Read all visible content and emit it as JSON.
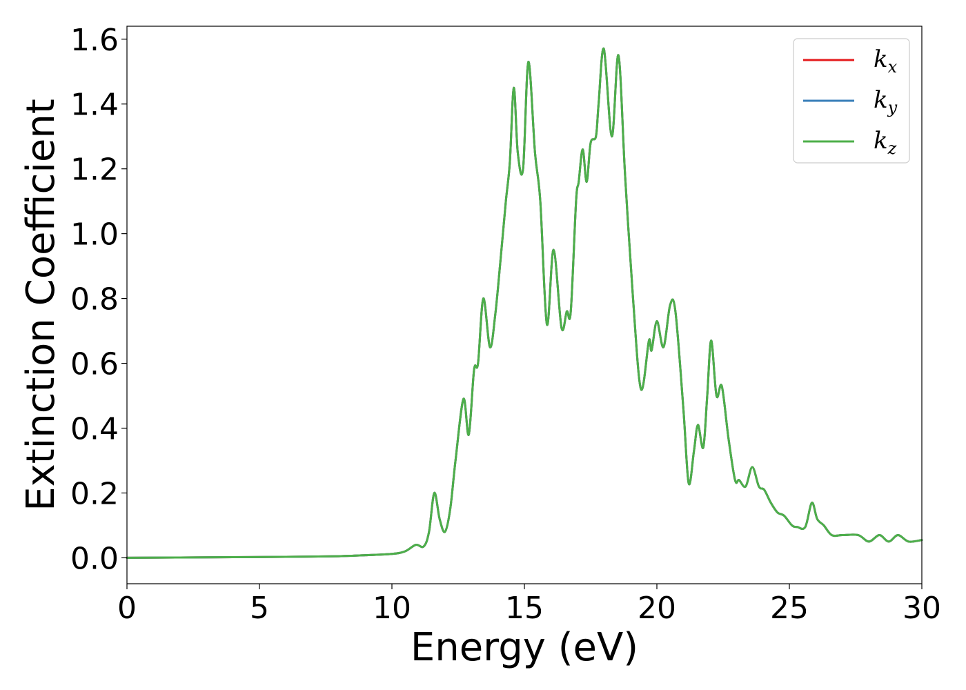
{
  "chart_data": {
    "type": "line",
    "xlabel": "Energy (eV)",
    "ylabel": "Extinction Coefficient",
    "xlim": [
      0,
      30
    ],
    "ylim": [
      -0.08,
      1.64
    ],
    "xticks": [
      0,
      5,
      10,
      15,
      20,
      25,
      30
    ],
    "xtick_labels": [
      "0",
      "5",
      "10",
      "15",
      "20",
      "25",
      "30"
    ],
    "yticks": [
      0.0,
      0.2,
      0.4,
      0.6,
      0.8,
      1.0,
      1.2,
      1.4,
      1.6
    ],
    "ytick_labels": [
      "0.0",
      "0.2",
      "0.4",
      "0.6",
      "0.8",
      "1.0",
      "1.2",
      "1.4",
      "1.6"
    ],
    "grid": false,
    "legend_position": "top-right",
    "legend": [
      {
        "base": "k",
        "sub": "x",
        "color": "#e41a1c"
      },
      {
        "base": "k",
        "sub": "y",
        "color": "#377eb8"
      },
      {
        "base": "k",
        "sub": "z",
        "color": "#4daf4a"
      }
    ],
    "shared_x": [
      0,
      2,
      4,
      6,
      8,
      9,
      10,
      10.5,
      10.9,
      11.2,
      11.4,
      11.6,
      11.8,
      12.0,
      12.2,
      12.4,
      12.7,
      12.9,
      13.1,
      13.25,
      13.45,
      13.7,
      13.9,
      14.1,
      14.3,
      14.45,
      14.6,
      14.75,
      14.95,
      15.15,
      15.4,
      15.6,
      15.85,
      16.1,
      16.4,
      16.6,
      16.75,
      16.95,
      17.05,
      17.2,
      17.35,
      17.5,
      17.7,
      17.8,
      18.0,
      18.3,
      18.55,
      18.8,
      19.1,
      19.4,
      19.7,
      19.8,
      20.0,
      20.25,
      20.5,
      20.7,
      21.0,
      21.2,
      21.4,
      21.55,
      21.75,
      21.9,
      22.05,
      22.25,
      22.45,
      22.7,
      22.95,
      23.1,
      23.35,
      23.6,
      23.85,
      24.05,
      24.3,
      24.55,
      24.8,
      25.1,
      25.3,
      25.6,
      25.85,
      26.05,
      26.3,
      26.6,
      27.0,
      27.6,
      28.0,
      28.4,
      28.75,
      29.1,
      29.5,
      30.0
    ],
    "series": [
      {
        "name": "k_x",
        "color": "#e41a1c",
        "values": [
          0,
          0.001,
          0.002,
          0.003,
          0.005,
          0.008,
          0.012,
          0.02,
          0.04,
          0.035,
          0.08,
          0.2,
          0.12,
          0.08,
          0.15,
          0.3,
          0.49,
          0.38,
          0.58,
          0.6,
          0.8,
          0.65,
          0.75,
          0.92,
          1.1,
          1.22,
          1.45,
          1.25,
          1.2,
          1.53,
          1.25,
          1.1,
          0.72,
          0.95,
          0.71,
          0.76,
          0.76,
          1.1,
          1.16,
          1.26,
          1.16,
          1.28,
          1.3,
          1.4,
          1.57,
          1.3,
          1.55,
          1.18,
          0.8,
          0.52,
          0.67,
          0.64,
          0.73,
          0.65,
          0.78,
          0.76,
          0.46,
          0.23,
          0.33,
          0.41,
          0.34,
          0.5,
          0.67,
          0.5,
          0.53,
          0.37,
          0.24,
          0.24,
          0.22,
          0.28,
          0.22,
          0.21,
          0.17,
          0.14,
          0.13,
          0.1,
          0.095,
          0.095,
          0.17,
          0.12,
          0.1,
          0.07,
          0.07,
          0.07,
          0.05,
          0.07,
          0.05,
          0.07,
          0.05,
          0.055
        ]
      },
      {
        "name": "k_y",
        "color": "#377eb8",
        "values": [
          0,
          0.001,
          0.002,
          0.003,
          0.005,
          0.008,
          0.012,
          0.02,
          0.04,
          0.035,
          0.08,
          0.2,
          0.12,
          0.08,
          0.15,
          0.3,
          0.49,
          0.38,
          0.58,
          0.6,
          0.8,
          0.65,
          0.75,
          0.92,
          1.1,
          1.22,
          1.45,
          1.25,
          1.2,
          1.53,
          1.25,
          1.1,
          0.72,
          0.95,
          0.71,
          0.76,
          0.76,
          1.1,
          1.16,
          1.26,
          1.16,
          1.28,
          1.3,
          1.4,
          1.57,
          1.3,
          1.55,
          1.18,
          0.8,
          0.52,
          0.67,
          0.64,
          0.73,
          0.65,
          0.78,
          0.76,
          0.46,
          0.23,
          0.33,
          0.41,
          0.34,
          0.5,
          0.67,
          0.5,
          0.53,
          0.37,
          0.24,
          0.24,
          0.22,
          0.28,
          0.22,
          0.21,
          0.17,
          0.14,
          0.13,
          0.1,
          0.095,
          0.095,
          0.17,
          0.12,
          0.1,
          0.07,
          0.07,
          0.07,
          0.05,
          0.07,
          0.05,
          0.07,
          0.05,
          0.055
        ]
      },
      {
        "name": "k_z",
        "color": "#4daf4a",
        "values": [
          0,
          0.001,
          0.002,
          0.003,
          0.005,
          0.008,
          0.012,
          0.02,
          0.04,
          0.035,
          0.08,
          0.2,
          0.12,
          0.08,
          0.15,
          0.3,
          0.49,
          0.38,
          0.58,
          0.6,
          0.8,
          0.65,
          0.75,
          0.92,
          1.1,
          1.22,
          1.45,
          1.25,
          1.2,
          1.53,
          1.25,
          1.1,
          0.72,
          0.95,
          0.71,
          0.76,
          0.76,
          1.1,
          1.16,
          1.26,
          1.16,
          1.28,
          1.3,
          1.4,
          1.57,
          1.3,
          1.55,
          1.18,
          0.8,
          0.52,
          0.67,
          0.64,
          0.73,
          0.65,
          0.78,
          0.76,
          0.46,
          0.23,
          0.33,
          0.41,
          0.34,
          0.5,
          0.67,
          0.5,
          0.53,
          0.37,
          0.24,
          0.24,
          0.22,
          0.28,
          0.22,
          0.21,
          0.17,
          0.14,
          0.13,
          0.1,
          0.095,
          0.095,
          0.17,
          0.12,
          0.1,
          0.07,
          0.07,
          0.07,
          0.05,
          0.07,
          0.05,
          0.07,
          0.05,
          0.055
        ]
      }
    ]
  }
}
